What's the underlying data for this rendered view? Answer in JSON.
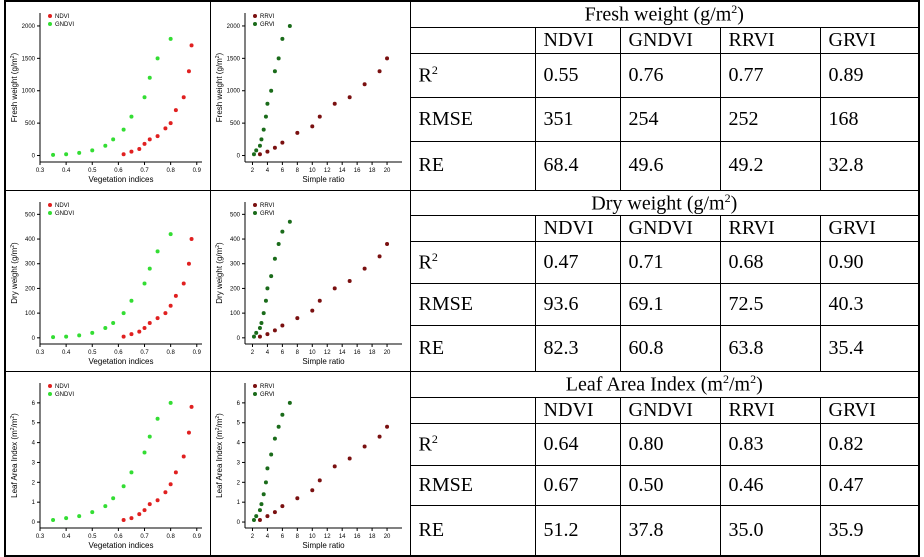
{
  "blocks": [
    {
      "plots": [
        {
          "xlabel": "Vegetation indices",
          "ylabel": [
            "Fresh weight (g/m",
            "2",
            ")"
          ],
          "xlim": [
            0.3,
            0.92
          ],
          "ylim": [
            -100,
            2200
          ],
          "xticks": [
            0.3,
            0.4,
            0.5,
            0.6,
            0.7,
            0.8,
            0.9
          ],
          "yticks": [
            0,
            500,
            1000,
            1500,
            2000
          ],
          "series": [
            {
              "name": "NDVI",
              "color": "#e02020",
              "x": [
                0.62,
                0.65,
                0.68,
                0.7,
                0.72,
                0.75,
                0.78,
                0.8,
                0.82,
                0.85,
                0.87,
                0.88
              ],
              "y": [
                20,
                60,
                100,
                180,
                250,
                300,
                420,
                500,
                700,
                900,
                1300,
                1700
              ]
            },
            {
              "name": "GNDVI",
              "color": "#33dd33",
              "x": [
                0.35,
                0.4,
                0.45,
                0.5,
                0.55,
                0.58,
                0.62,
                0.65,
                0.7,
                0.72,
                0.75,
                0.8
              ],
              "y": [
                10,
                20,
                40,
                80,
                150,
                250,
                400,
                600,
                900,
                1200,
                1500,
                1800
              ]
            }
          ]
        },
        {
          "xlabel": "Simple ratio",
          "ylabel": [
            "Fresh weight (g/m",
            "2",
            ")"
          ],
          "xlim": [
            1,
            22
          ],
          "ylim": [
            -100,
            2200
          ],
          "xticks": [
            2,
            4,
            6,
            8,
            10,
            12,
            14,
            16,
            18,
            20
          ],
          "yticks": [
            0,
            500,
            1000,
            1500,
            2000
          ],
          "series": [
            {
              "name": "RRVI",
              "color": "#7a1010",
              "x": [
                3,
                4,
                5,
                6,
                8,
                10,
                11,
                13,
                15,
                17,
                19,
                20
              ],
              "y": [
                20,
                60,
                120,
                200,
                350,
                450,
                600,
                800,
                900,
                1100,
                1300,
                1500
              ]
            },
            {
              "name": "GRVI",
              "color": "#1a6b1a",
              "x": [
                2.2,
                2.5,
                3,
                3.2,
                3.5,
                3.8,
                4,
                4.5,
                5,
                5.5,
                6,
                7
              ],
              "y": [
                20,
                80,
                150,
                250,
                400,
                600,
                800,
                1000,
                1300,
                1500,
                1800,
                2000
              ]
            }
          ]
        }
      ],
      "table": {
        "title": [
          "Fresh weight (g/m",
          "2",
          ")"
        ],
        "headers": [
          "NDVI",
          "GNDVI",
          "RRVI",
          "GRVI"
        ],
        "rows": [
          {
            "label": [
              "R",
              "2"
            ],
            "values": [
              "0.55",
              "0.76",
              "0.77",
              "0.89"
            ]
          },
          {
            "label": [
              "RMSE"
            ],
            "values": [
              "351",
              "254",
              "252",
              "168"
            ]
          },
          {
            "label": [
              "RE"
            ],
            "values": [
              "68.4",
              "49.6",
              "49.2",
              "32.8"
            ]
          }
        ]
      }
    },
    {
      "plots": [
        {
          "xlabel": "Vegetation indices",
          "ylabel": [
            "Dry weight (g/m",
            "2",
            ")"
          ],
          "xlim": [
            0.3,
            0.92
          ],
          "ylim": [
            -25,
            550
          ],
          "xticks": [
            0.3,
            0.4,
            0.5,
            0.6,
            0.7,
            0.8,
            0.9
          ],
          "yticks": [
            0,
            100,
            200,
            300,
            400,
            500
          ],
          "series": [
            {
              "name": "NDVI",
              "color": "#e02020",
              "x": [
                0.62,
                0.65,
                0.68,
                0.7,
                0.72,
                0.75,
                0.78,
                0.8,
                0.82,
                0.85,
                0.87,
                0.88
              ],
              "y": [
                5,
                15,
                25,
                40,
                60,
                80,
                100,
                130,
                170,
                220,
                300,
                400
              ]
            },
            {
              "name": "GNDVI",
              "color": "#33dd33",
              "x": [
                0.35,
                0.4,
                0.45,
                0.5,
                0.55,
                0.58,
                0.62,
                0.65,
                0.7,
                0.72,
                0.75,
                0.8
              ],
              "y": [
                3,
                5,
                10,
                20,
                40,
                60,
                100,
                150,
                220,
                280,
                350,
                420
              ]
            }
          ]
        },
        {
          "xlabel": "Simple ratio",
          "ylabel": [
            "Dry weight (g/m",
            "2",
            ")"
          ],
          "xlim": [
            1,
            22
          ],
          "ylim": [
            -25,
            550
          ],
          "xticks": [
            2,
            4,
            6,
            8,
            10,
            12,
            14,
            16,
            18,
            20
          ],
          "yticks": [
            0,
            100,
            200,
            300,
            400,
            500
          ],
          "series": [
            {
              "name": "RRVI",
              "color": "#7a1010",
              "x": [
                3,
                4,
                5,
                6,
                8,
                10,
                11,
                13,
                15,
                17,
                19,
                20
              ],
              "y": [
                5,
                15,
                30,
                50,
                80,
                110,
                150,
                200,
                230,
                280,
                330,
                380
              ]
            },
            {
              "name": "GRVI",
              "color": "#1a6b1a",
              "x": [
                2.2,
                2.5,
                3,
                3.2,
                3.5,
                3.8,
                4,
                4.5,
                5,
                5.5,
                6,
                7
              ],
              "y": [
                5,
                20,
                40,
                60,
                100,
                150,
                200,
                250,
                320,
                380,
                430,
                470
              ]
            }
          ]
        }
      ],
      "table": {
        "title": [
          "Dry weight (g/m",
          "2",
          ")"
        ],
        "headers": [
          "NDVI",
          "GNDVI",
          "RRVI",
          "GRVI"
        ],
        "rows": [
          {
            "label": [
              "R",
              "2"
            ],
            "values": [
              "0.47",
              "0.71",
              "0.68",
              "0.90"
            ]
          },
          {
            "label": [
              "RMSE"
            ],
            "values": [
              "93.6",
              "69.1",
              "72.5",
              "40.3"
            ]
          },
          {
            "label": [
              "RE"
            ],
            "values": [
              "82.3",
              "60.8",
              "63.8",
              "35.4"
            ]
          }
        ]
      }
    },
    {
      "plots": [
        {
          "xlabel": "Vegetation indices",
          "ylabel": [
            "Leaf Area Index (m",
            "2",
            "/m",
            "2",
            ")"
          ],
          "xlim": [
            0.3,
            0.92
          ],
          "ylim": [
            -0.3,
            7
          ],
          "xticks": [
            0.3,
            0.4,
            0.5,
            0.6,
            0.7,
            0.8,
            0.9
          ],
          "yticks": [
            0,
            1,
            2,
            3,
            4,
            5,
            6
          ],
          "series": [
            {
              "name": "NDVI",
              "color": "#e02020",
              "x": [
                0.62,
                0.65,
                0.68,
                0.7,
                0.72,
                0.75,
                0.78,
                0.8,
                0.82,
                0.85,
                0.87,
                0.88
              ],
              "y": [
                0.1,
                0.2,
                0.4,
                0.6,
                0.9,
                1.1,
                1.5,
                1.9,
                2.5,
                3.3,
                4.5,
                5.8
              ]
            },
            {
              "name": "GNDVI",
              "color": "#33dd33",
              "x": [
                0.35,
                0.4,
                0.45,
                0.5,
                0.55,
                0.58,
                0.62,
                0.65,
                0.7,
                0.72,
                0.75,
                0.8
              ],
              "y": [
                0.1,
                0.2,
                0.3,
                0.5,
                0.8,
                1.2,
                1.8,
                2.5,
                3.5,
                4.3,
                5.2,
                6
              ]
            }
          ]
        },
        {
          "xlabel": "Simple ratio",
          "ylabel": [
            "Leaf Area Index (m",
            "2",
            "/m",
            "2",
            ")"
          ],
          "xlim": [
            1,
            22
          ],
          "ylim": [
            -0.3,
            7
          ],
          "xticks": [
            2,
            4,
            6,
            8,
            10,
            12,
            14,
            16,
            18,
            20
          ],
          "yticks": [
            0,
            1,
            2,
            3,
            4,
            5,
            6
          ],
          "series": [
            {
              "name": "RRVI",
              "color": "#7a1010",
              "x": [
                3,
                4,
                5,
                6,
                8,
                10,
                11,
                13,
                15,
                17,
                19,
                20
              ],
              "y": [
                0.1,
                0.3,
                0.5,
                0.8,
                1.2,
                1.6,
                2.1,
                2.8,
                3.2,
                3.8,
                4.3,
                4.8
              ]
            },
            {
              "name": "GRVI",
              "color": "#1a6b1a",
              "x": [
                2.2,
                2.5,
                3,
                3.2,
                3.5,
                3.8,
                4,
                4.5,
                5,
                5.5,
                6,
                7
              ],
              "y": [
                0.1,
                0.3,
                0.6,
                0.9,
                1.4,
                2,
                2.7,
                3.4,
                4.2,
                4.8,
                5.4,
                6
              ]
            }
          ]
        }
      ],
      "table": {
        "title": [
          "Leaf Area Index (m",
          "2",
          "/m",
          "2",
          ")"
        ],
        "headers": [
          "NDVI",
          "GNDVI",
          "RRVI",
          "GRVI"
        ],
        "rows": [
          {
            "label": [
              "R",
              "2"
            ],
            "values": [
              "0.64",
              "0.80",
              "0.83",
              "0.82"
            ]
          },
          {
            "label": [
              "RMSE"
            ],
            "values": [
              "0.67",
              "0.50",
              "0.46",
              "0.47"
            ]
          },
          {
            "label": [
              "RE"
            ],
            "values": [
              "51.2",
              "37.8",
              "35.0",
              "35.9"
            ]
          }
        ]
      }
    }
  ]
}
